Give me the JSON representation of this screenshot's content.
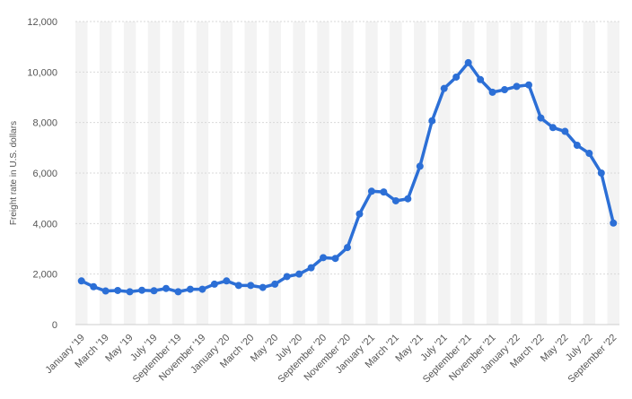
{
  "chart_data": {
    "type": "line",
    "ylabel": "Freight rate in U.S. dollars",
    "xlabel": "",
    "ylim": [
      0,
      12000
    ],
    "yticks": [
      0,
      2000,
      4000,
      6000,
      8000,
      10000,
      12000
    ],
    "ytick_labels": [
      "0",
      "2,000",
      "4,000",
      "6,000",
      "8,000",
      "10,000",
      "12,000"
    ],
    "grid": "horizontal",
    "band_shading": "alternating vertical stripes",
    "x": [
      "January '19",
      "February '19",
      "March '19",
      "April '19",
      "May '19",
      "June '19",
      "July '19",
      "August '19",
      "September '19",
      "October '19",
      "November '19",
      "December '19",
      "January '20",
      "February '20",
      "March '20",
      "April '20",
      "May '20",
      "June '20",
      "July '20",
      "August '20",
      "September '20",
      "October '20",
      "November '20",
      "December '20",
      "January '21",
      "February '21",
      "March '21",
      "April '21",
      "May '21",
      "June '21",
      "July '21",
      "August '21",
      "September '21",
      "October '21",
      "November '21",
      "December '21",
      "January '22",
      "February '22",
      "March '22",
      "April '22",
      "May '22",
      "June '22",
      "July '22",
      "August '22",
      "September '22"
    ],
    "x_tick_labels": [
      "January '19",
      "March '19",
      "May '19",
      "July '19",
      "September '19",
      "November '19",
      "January '20",
      "March '20",
      "May '20",
      "July '20",
      "September '20",
      "November '20",
      "January '21",
      "March '21",
      "May '21",
      "July '21",
      "September '21",
      "November '21",
      "January '22",
      "March '22",
      "May '22",
      "July '22",
      "September '22"
    ],
    "series": [
      {
        "color": "#2c6fd6",
        "values": [
          1730,
          1500,
          1330,
          1350,
          1300,
          1360,
          1340,
          1430,
          1300,
          1400,
          1400,
          1600,
          1730,
          1550,
          1550,
          1470,
          1600,
          1900,
          2000,
          2250,
          2650,
          2620,
          3050,
          4380,
          5280,
          5250,
          4900,
          4980,
          6270,
          8070,
          9350,
          9800,
          10370,
          9700,
          9200,
          9300,
          9430,
          9490,
          8180,
          7800,
          7650,
          7100,
          6780,
          6000,
          4020
        ]
      }
    ]
  }
}
